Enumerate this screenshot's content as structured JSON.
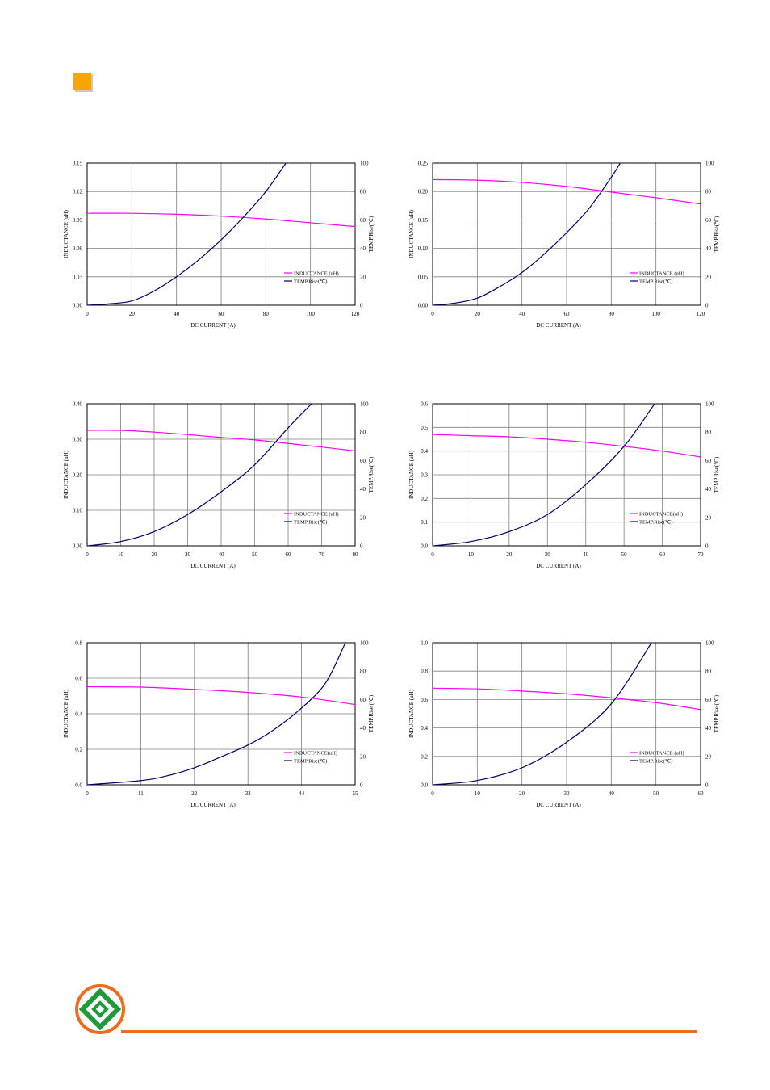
{
  "colors": {
    "inductance": "#ff00ff",
    "temp": "#000066",
    "accent": "#f7a500",
    "footer_line": "#f26b1d",
    "logo_green": "#1e9a3a",
    "logo_orange": "#f26b1d"
  },
  "chart_data": [
    {
      "type": "line",
      "xlabel": "DC CURRENT  (A)",
      "ylabel": "INDUCTANCE (uH)",
      "y2label": "TEMP.Rise(℃)",
      "xlim": [
        0,
        120
      ],
      "ylim": [
        0,
        0.15
      ],
      "y2lim": [
        0,
        100
      ],
      "xticks": [
        "0",
        "20",
        "40",
        "60",
        "80",
        "100",
        "120"
      ],
      "yticks": [
        "0.00",
        "0.03",
        "0.06",
        "0.09",
        "0.12",
        "0.15"
      ],
      "y2ticks": [
        "0",
        "20",
        "40",
        "60",
        "80",
        "100"
      ],
      "legend": [
        "INDUCTANCE (uH)",
        "TEMP.Rise(℃)"
      ],
      "legend_position": "bottom-right",
      "grid": true,
      "series": [
        {
          "name": "INDUCTANCE (uH)",
          "axis": "left",
          "x": [
            0,
            20,
            40,
            60,
            80,
            100,
            120
          ],
          "y": [
            0.097,
            0.097,
            0.096,
            0.094,
            0.091,
            0.087,
            0.083
          ]
        },
        {
          "name": "TEMP.Rise(℃)",
          "axis": "right",
          "x": [
            0,
            10,
            20,
            30,
            40,
            50,
            60,
            70,
            80,
            89
          ],
          "y": [
            0,
            1,
            3,
            10,
            20,
            32,
            46,
            62,
            80,
            100
          ]
        }
      ]
    },
    {
      "type": "line",
      "xlabel": "DC CURRENT  (A)",
      "ylabel": "INDUCTANCE (uH)",
      "y2label": "TEMP.Rise(℃)",
      "xlim": [
        0,
        120
      ],
      "ylim": [
        0,
        0.25
      ],
      "y2lim": [
        0,
        100
      ],
      "xticks": [
        "0",
        "20",
        "40",
        "60",
        "80",
        "100",
        "120"
      ],
      "yticks": [
        "0.00",
        "0.05",
        "0.10",
        "0.15",
        "0.20",
        "0.25"
      ],
      "y2ticks": [
        "0",
        "20",
        "40",
        "60",
        "80",
        "100"
      ],
      "legend": [
        "INDUCTANCE (uH)",
        "TEMP.Rise(℃)"
      ],
      "legend_position": "bottom-right",
      "grid": true,
      "series": [
        {
          "name": "INDUCTANCE (uH)",
          "axis": "left",
          "x": [
            0,
            20,
            40,
            60,
            80,
            100,
            120
          ],
          "y": [
            0.221,
            0.22,
            0.216,
            0.209,
            0.199,
            0.189,
            0.178
          ]
        },
        {
          "name": "TEMP.Rise(℃)",
          "axis": "right",
          "x": [
            0,
            10,
            20,
            30,
            40,
            50,
            60,
            70,
            80,
            84
          ],
          "y": [
            0,
            1.5,
            5,
            13,
            23,
            36,
            51,
            68,
            90,
            100
          ]
        }
      ]
    },
    {
      "type": "line",
      "xlabel": "DC CURRENT  (A)",
      "ylabel": "INDUCTANCE (uH)",
      "y2label": "TEMP.Rise(℃)",
      "xlim": [
        0,
        80
      ],
      "ylim": [
        0,
        0.4
      ],
      "y2lim": [
        0,
        100
      ],
      "xticks": [
        "0",
        "10",
        "20",
        "30",
        "40",
        "50",
        "60",
        "70",
        "80"
      ],
      "yticks": [
        "0.00",
        "0.10",
        "0.20",
        "0.30",
        "0.40"
      ],
      "y2ticks": [
        "0",
        "20",
        "40",
        "60",
        "80",
        "100"
      ],
      "legend": [
        "INDUCTANCE (uH)",
        "TEMP.Rise(℃)"
      ],
      "legend_position": "bottom-right",
      "grid": true,
      "series": [
        {
          "name": "INDUCTANCE (uH)",
          "axis": "left",
          "x": [
            0,
            10,
            20,
            30,
            40,
            50,
            60,
            70,
            80
          ],
          "y": [
            0.325,
            0.325,
            0.32,
            0.313,
            0.305,
            0.298,
            0.288,
            0.278,
            0.267
          ]
        },
        {
          "name": "TEMP.Rise(℃)",
          "axis": "right",
          "x": [
            0,
            10,
            20,
            30,
            40,
            50,
            60,
            67
          ],
          "y": [
            0,
            3,
            10,
            22,
            38,
            57,
            83,
            100
          ]
        }
      ]
    },
    {
      "type": "line",
      "xlabel": "DC CURRENT  (A)",
      "ylabel": "INDUCTANCE (uH)",
      "y2label": "TEMP.Rise(℃)",
      "xlim": [
        0,
        70
      ],
      "ylim": [
        0,
        0.6
      ],
      "y2lim": [
        0,
        100
      ],
      "xticks": [
        "0",
        "10",
        "20",
        "30",
        "40",
        "50",
        "60",
        "70"
      ],
      "yticks": [
        "0.0",
        "0.1",
        "0.2",
        "0.3",
        "0.4",
        "0.5",
        "0.6"
      ],
      "y2ticks": [
        "0",
        "20",
        "40",
        "60",
        "80",
        "100"
      ],
      "legend": [
        "INDUCTANCE(uH)",
        "TEMP.Rise(℃)"
      ],
      "legend_position": "bottom-right",
      "grid": true,
      "series": [
        {
          "name": "INDUCTANCE(uH)",
          "axis": "left",
          "x": [
            0,
            10,
            20,
            30,
            40,
            50,
            60,
            70
          ],
          "y": [
            0.47,
            0.465,
            0.46,
            0.45,
            0.437,
            0.42,
            0.4,
            0.375
          ]
        },
        {
          "name": "TEMP.Rise(℃)",
          "axis": "right",
          "x": [
            0,
            10,
            20,
            30,
            40,
            50,
            58
          ],
          "y": [
            0,
            3,
            10,
            22,
            43,
            70,
            100
          ]
        }
      ]
    },
    {
      "type": "line",
      "xlabel": "DC CURRENT  (A)",
      "ylabel": "INDUCTANCE (uH)",
      "y2label": "TEMP.Rise (℃)",
      "xlim": [
        0,
        55
      ],
      "ylim": [
        0,
        0.8
      ],
      "y2lim": [
        0,
        100
      ],
      "xticks": [
        "0",
        "11",
        "22",
        "33",
        "44",
        "55"
      ],
      "yticks": [
        "0.0",
        "0.2",
        "0.4",
        "0.6",
        "0.8"
      ],
      "y2ticks": [
        "0",
        "20",
        "40",
        "60",
        "80",
        "100"
      ],
      "legend": [
        "INDUCTANCE(uH)",
        "TEMP.Rise(℃)"
      ],
      "legend_position": "bottom-right",
      "grid": true,
      "series": [
        {
          "name": "INDUCTANCE(uH)",
          "axis": "left",
          "x": [
            0,
            11,
            22,
            33,
            44,
            55
          ],
          "y": [
            0.552,
            0.55,
            0.537,
            0.52,
            0.494,
            0.452
          ]
        },
        {
          "name": "TEMP.Rise(℃)",
          "axis": "right",
          "x": [
            0,
            11,
            16,
            22,
            27,
            33,
            38,
            44,
            49,
            53
          ],
          "y": [
            0,
            3,
            6,
            12,
            19,
            28,
            38,
            54,
            72,
            100
          ]
        }
      ]
    },
    {
      "type": "line",
      "xlabel": "DC CURRENT  (A)",
      "ylabel": "INDUCTANCE (uH)",
      "y2label": "TEMP.Rise (℃)",
      "xlim": [
        0,
        60
      ],
      "ylim": [
        0,
        1.0
      ],
      "y2lim": [
        0,
        100
      ],
      "xticks": [
        "0",
        "10",
        "20",
        "30",
        "40",
        "50",
        "60"
      ],
      "yticks": [
        "0.0",
        "0.2",
        "0.4",
        "0.6",
        "0.8",
        "1.0"
      ],
      "y2ticks": [
        "0",
        "20",
        "40",
        "60",
        "80",
        "100"
      ],
      "legend": [
        "INDUCTANCE (uH)",
        "TEMP.Rise(℃)"
      ],
      "legend_position": "bottom-right",
      "grid": true,
      "series": [
        {
          "name": "INDUCTANCE (uH)",
          "axis": "left",
          "x": [
            0,
            10,
            20,
            30,
            40,
            50,
            60
          ],
          "y": [
            0.68,
            0.675,
            0.66,
            0.64,
            0.612,
            0.578,
            0.53
          ]
        },
        {
          "name": "TEMP.Rise(℃)",
          "axis": "right",
          "x": [
            0,
            10,
            20,
            30,
            40,
            49
          ],
          "y": [
            0,
            3,
            12,
            30,
            57,
            100
          ]
        }
      ]
    }
  ]
}
